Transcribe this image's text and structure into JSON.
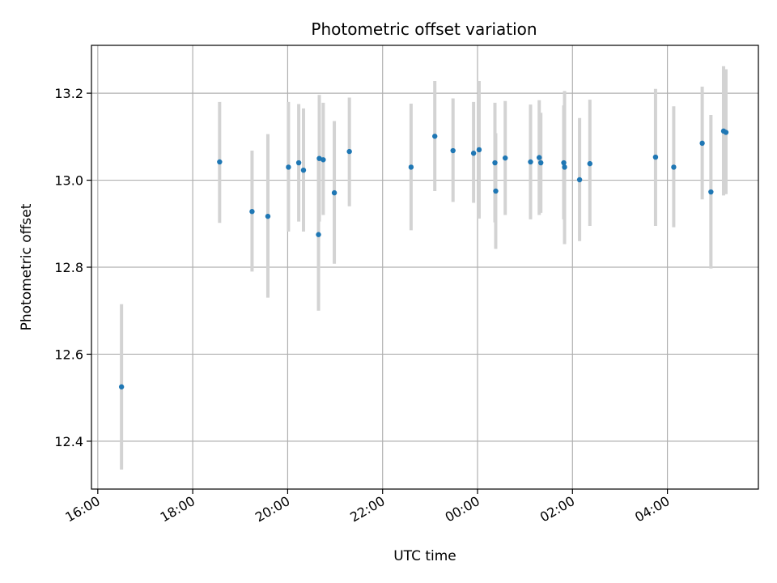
{
  "chart_data": {
    "type": "scatter",
    "title": "Photometric offset variation",
    "xlabel": "UTC time",
    "ylabel": "Photometric offset",
    "x_tick_labels": [
      "16:00",
      "18:00",
      "20:00",
      "22:00",
      "00:00",
      "02:00",
      "04:00"
    ],
    "y_tick_labels": [
      "12.4",
      "12.6",
      "12.8",
      "13.0",
      "13.2"
    ],
    "y_ticks": [
      12.4,
      12.6,
      12.8,
      13.0,
      13.2
    ],
    "x_axis_start": "16:00",
    "x_tick_times": [
      "16:00",
      "18:00",
      "20:00",
      "22:00",
      "00:00",
      "02:00",
      "04:00"
    ],
    "xlim": [
      "15:52",
      "05:55"
    ],
    "ylim": [
      12.29,
      13.31
    ],
    "grid": true,
    "x_tick_rotation": "rotated ~30°",
    "colors": {
      "marker": "#1f77b4",
      "errorbar": "#d3d3d3",
      "grid": "#b0b0b0"
    },
    "points": [
      {
        "t": "16:30",
        "y": 12.525,
        "ylo": 12.335,
        "yhi": 12.715
      },
      {
        "t": "18:34",
        "y": 13.042,
        "ylo": 12.902,
        "yhi": 13.18
      },
      {
        "t": "19:15",
        "y": 12.928,
        "ylo": 12.79,
        "yhi": 13.068
      },
      {
        "t": "19:35",
        "y": 12.917,
        "ylo": 12.73,
        "yhi": 13.106
      },
      {
        "t": "20:01",
        "y": 13.03,
        "ylo": 12.882,
        "yhi": 13.18
      },
      {
        "t": "20:14",
        "y": 13.04,
        "ylo": 12.905,
        "yhi": 13.175
      },
      {
        "t": "20:20",
        "y": 13.023,
        "ylo": 12.882,
        "yhi": 13.165
      },
      {
        "t": "20:39",
        "y": 12.875,
        "ylo": 12.7,
        "yhi": 13.05
      },
      {
        "t": "20:40",
        "y": 13.05,
        "ylo": 12.905,
        "yhi": 13.196
      },
      {
        "t": "20:45",
        "y": 13.047,
        "ylo": 12.92,
        "yhi": 13.178
      },
      {
        "t": "20:59",
        "y": 12.971,
        "ylo": 12.808,
        "yhi": 13.136
      },
      {
        "t": "21:18",
        "y": 13.066,
        "ylo": 12.94,
        "yhi": 13.19
      },
      {
        "t": "22:36",
        "y": 13.03,
        "ylo": 12.885,
        "yhi": 13.176
      },
      {
        "t": "23:06",
        "y": 13.101,
        "ylo": 12.975,
        "yhi": 13.228
      },
      {
        "t": "23:29",
        "y": 13.068,
        "ylo": 12.95,
        "yhi": 13.188
      },
      {
        "t": "23:55",
        "y": 13.062,
        "ylo": 12.948,
        "yhi": 13.18
      },
      {
        "t": "00:02",
        "y": 13.07,
        "ylo": 12.912,
        "yhi": 13.228
      },
      {
        "t": "00:22",
        "y": 13.04,
        "ylo": 12.903,
        "yhi": 13.178
      },
      {
        "t": "00:23",
        "y": 12.975,
        "ylo": 12.842,
        "yhi": 13.108
      },
      {
        "t": "00:35",
        "y": 13.051,
        "ylo": 12.92,
        "yhi": 13.182
      },
      {
        "t": "01:07",
        "y": 13.042,
        "ylo": 12.91,
        "yhi": 13.174
      },
      {
        "t": "01:18",
        "y": 13.052,
        "ylo": 12.92,
        "yhi": 13.184
      },
      {
        "t": "01:20",
        "y": 13.04,
        "ylo": 12.925,
        "yhi": 13.155
      },
      {
        "t": "01:49",
        "y": 13.04,
        "ylo": 12.91,
        "yhi": 13.172
      },
      {
        "t": "01:50",
        "y": 13.03,
        "ylo": 12.853,
        "yhi": 13.205
      },
      {
        "t": "02:09",
        "y": 13.001,
        "ylo": 12.86,
        "yhi": 13.143
      },
      {
        "t": "02:22",
        "y": 13.038,
        "ylo": 12.895,
        "yhi": 13.185
      },
      {
        "t": "03:45",
        "y": 13.053,
        "ylo": 12.895,
        "yhi": 13.21
      },
      {
        "t": "04:08",
        "y": 13.03,
        "ylo": 12.892,
        "yhi": 13.17
      },
      {
        "t": "04:44",
        "y": 13.085,
        "ylo": 12.956,
        "yhi": 13.215
      },
      {
        "t": "04:55",
        "y": 12.973,
        "ylo": 12.797,
        "yhi": 13.15
      },
      {
        "t": "05:11",
        "y": 13.113,
        "ylo": 12.965,
        "yhi": 13.262
      },
      {
        "t": "05:14",
        "y": 13.11,
        "ylo": 12.968,
        "yhi": 13.255
      }
    ]
  }
}
